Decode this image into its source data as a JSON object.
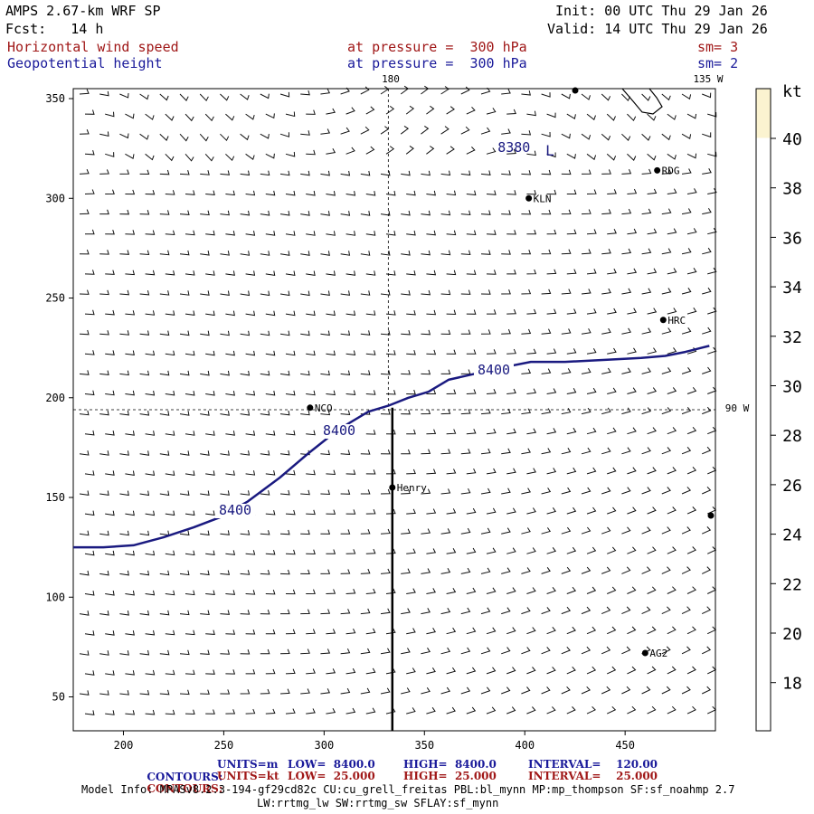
{
  "header": {
    "model": "AMPS 2.67-km WRF SP",
    "fcst": "Fcst:   14 h",
    "init": "Init: 00 UTC Thu 29 Jan 26",
    "valid": "Valid: 14 UTC Thu 29 Jan 26",
    "field1": "Horizontal wind speed",
    "field1_level": "at pressure =  300 hPa",
    "field1_sm": "sm= 3",
    "field2": "Geopotential height",
    "field2_level": "at pressure =  300 hPa",
    "field2_sm": "sm= 2"
  },
  "map_labels": {
    "lon180": "180",
    "lon135": "135 W",
    "lon90": "90 W",
    "low_marker": "L",
    "height_low": "8380",
    "height_8400_a": "8400",
    "height_8400_b": "8400",
    "height_8400_c": "8400"
  },
  "stations": [
    {
      "name": "KLN",
      "x": 402,
      "y": 300
    },
    {
      "name": "RDG",
      "x": 466,
      "y": 314
    },
    {
      "name": "HRC",
      "x": 469,
      "y": 239
    },
    {
      "name": "NCO",
      "x": 293,
      "y": 195
    },
    {
      "name": "Henry",
      "x": 334,
      "y": 155
    },
    {
      "name": "AG2",
      "x": 460,
      "y": 72
    }
  ],
  "colorbar": {
    "unit": "kt",
    "ticks": [
      "40",
      "38",
      "36",
      "34",
      "32",
      "30",
      "28",
      "26",
      "24",
      "22",
      "20",
      "18"
    ],
    "fill_top": "#fbf3d0",
    "fill_rest": "#ffffff"
  },
  "legend": {
    "row1": {
      "label": "CONTOURS:",
      "units": "UNITS=m",
      "low": "LOW=  8400.0",
      "high": "HIGH=  8400.0",
      "interval": "INTERVAL=    120.00",
      "color": "#1a1a9a"
    },
    "row2": {
      "label": "CONTOURS:",
      "units": "UNITS=kt",
      "low": "LOW=  25.000",
      "high": "HIGH=  25.000",
      "interval": "INTERVAL=    25.000",
      "color": "#a01818"
    }
  },
  "model_info": {
    "line1": "Model Info: MPASv8.2.3-194-gf29cd82c CU:cu_grell_freitas PBL:bl_mynn MP:mp_thompson SF:sf_noahmp 2.7",
    "line2": "LW:rrtmg_lw SW:rrtmg_sw SFLAY:sf_mynn"
  },
  "colors": {
    "height_contour": "#1a1a80",
    "cross_section": "#000000",
    "accent_red": "#a01818",
    "accent_blue": "#1a1a9a"
  },
  "chart_data": {
    "type": "contour",
    "xlim": [
      175,
      495
    ],
    "ylim": [
      33,
      355
    ],
    "x_ticks": [
      200,
      250,
      300,
      350,
      400,
      450
    ],
    "y_ticks": [
      50,
      100,
      150,
      200,
      250,
      300,
      350
    ],
    "grid": false,
    "height_contour_8400": [
      [
        175,
        125
      ],
      [
        190,
        125
      ],
      [
        205,
        126
      ],
      [
        220,
        130
      ],
      [
        235,
        135
      ],
      [
        248,
        140
      ],
      [
        262,
        148
      ],
      [
        278,
        160
      ],
      [
        292,
        172
      ],
      [
        302,
        180
      ],
      [
        312,
        187
      ],
      [
        322,
        193
      ],
      [
        332,
        196
      ],
      [
        342,
        200
      ],
      [
        352,
        203
      ],
      [
        362,
        209
      ],
      [
        375,
        212
      ],
      [
        388,
        215
      ],
      [
        403,
        218
      ],
      [
        420,
        218
      ],
      [
        440,
        219
      ],
      [
        458,
        220
      ],
      [
        470,
        221
      ],
      [
        480,
        223
      ],
      [
        488,
        225
      ],
      [
        492,
        226
      ]
    ],
    "height_contour_8380_label": [
      382,
      325
    ],
    "cross_section": {
      "x": 334,
      "y_from": 33,
      "y_to": 195
    },
    "reference_lines": {
      "lon_180_x": 332,
      "lon_90w_y": 194
    }
  }
}
